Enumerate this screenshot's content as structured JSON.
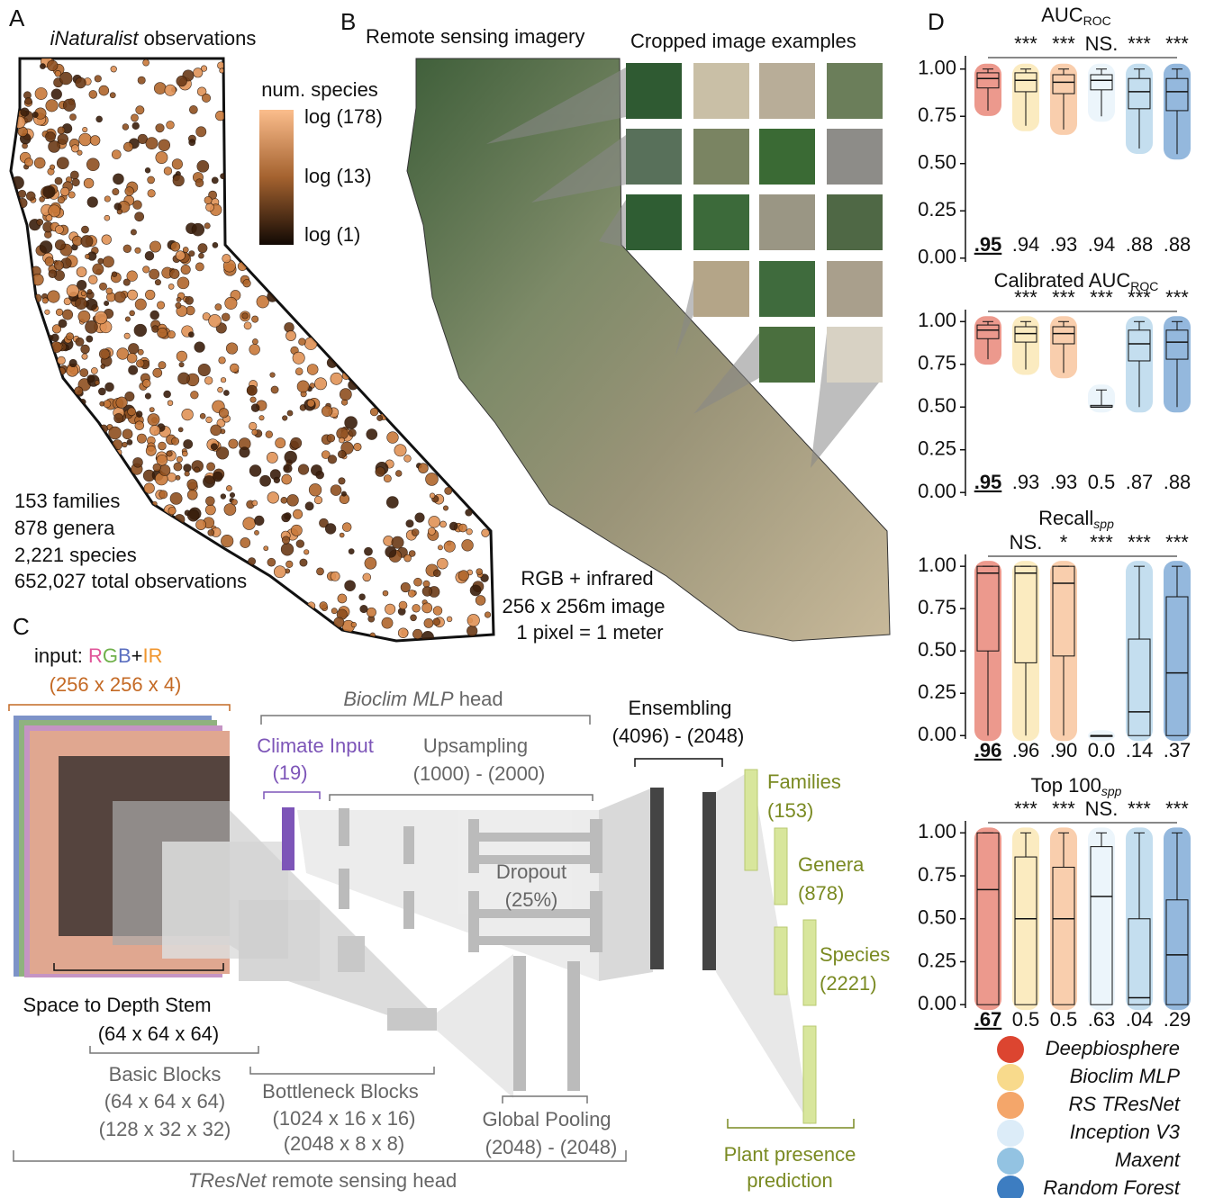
{
  "panel_a": {
    "label": "A",
    "title_italic": "iNaturalist",
    "title_rest": " observations",
    "colorbar_title": "num. species",
    "colorbar_ticks": [
      "log (178)",
      "log (13)",
      "log (1)"
    ],
    "stats": [
      "153  families",
      "878  genera",
      "2,221 species",
      "652,027 total observations"
    ]
  },
  "panel_b": {
    "label": "B",
    "title": "Remote sensing imagery",
    "crop_title": "Cropped image examples",
    "notes": [
      "RGB + infrared",
      "256 x 256m image",
      "1 pixel = 1 meter"
    ]
  },
  "panel_c": {
    "label": "C",
    "input": "input: ",
    "r": "R",
    "g": "G",
    "b": "B",
    "plus": "+",
    "ir": "IR",
    "input_dims": "(256 x 256 x 4)",
    "mlp_italic": "Bioclim MLP",
    "mlp_rest": " head",
    "climate": "Climate Input",
    "climate_dims": "(19)",
    "upsampling": "Upsampling",
    "upsampling_dims": "(1000) - (2000)",
    "dropout": "Dropout",
    "dropout_pct": "(25%)",
    "ensembling": "Ensembling",
    "ensembling_dims": "(4096) - (2048)",
    "families": "Families",
    "families_n": "(153)",
    "genera": "Genera",
    "genera_n": "(878)",
    "species": "Species",
    "species_n": "(2221)",
    "stem": "Space to Depth Stem",
    "stem_dims": "(64 x 64 x 64)",
    "basic": "Basic Blocks",
    "basic_dims": [
      "(64 x 64 x 64)",
      "(128 x 32 x 32)"
    ],
    "bottleneck": "Bottleneck Blocks",
    "bottleneck_dims": [
      "(1024 x 16 x 16)",
      "(2048 x 8 x 8)"
    ],
    "pooling": "Global Pooling",
    "pooling_dims": "(2048) - (2048)",
    "tresnet_italic": "TResNet",
    "tresnet_rest": " remote sensing head",
    "presence": [
      "Plant presence",
      "prediction"
    ]
  },
  "panel_d": {
    "label": "D",
    "legend": [
      {
        "name": "Deepbiosphere",
        "color": "#dc4530"
      },
      {
        "name": "Bioclim MLP",
        "color": "#f8da8c"
      },
      {
        "name": "RS TResNet",
        "color": "#f4a66a"
      },
      {
        "name": "Inception V3",
        "color": "#dcecf8"
      },
      {
        "name": "Maxent",
        "color": "#93c3e2"
      },
      {
        "name": "Random Forest",
        "color": "#3d7dc1"
      }
    ]
  },
  "chart_data": [
    {
      "type": "box",
      "title": "AUC",
      "title_sub": "ROC",
      "ylim": [
        -0.02,
        1.07
      ],
      "yticks": [
        {
          "value": 0,
          "label": "0.00"
        },
        {
          "value": 0.25,
          "label": "0.25"
        },
        {
          "value": 0.5,
          "label": "0.50"
        },
        {
          "value": 0.75,
          "label": "0.75"
        },
        {
          "value": 1,
          "label": "1.00"
        }
      ],
      "series": [
        {
          "stats": [
            0.78,
            0.9,
            0.95,
            0.98,
            1
          ],
          "value_label": ".95"
        },
        {
          "stats": [
            0.7,
            0.88,
            0.94,
            0.98,
            1
          ],
          "value_label": ".94",
          "significance": "***"
        },
        {
          "stats": [
            0.68,
            0.87,
            0.93,
            0.97,
            1
          ],
          "value_label": ".93",
          "significance": "***"
        },
        {
          "stats": [
            0.75,
            0.89,
            0.94,
            0.97,
            1
          ],
          "value_label": ".94",
          "significance": "NS."
        },
        {
          "stats": [
            0.58,
            0.79,
            0.88,
            0.95,
            1
          ],
          "value_label": ".88",
          "significance": "***"
        },
        {
          "stats": [
            0.55,
            0.78,
            0.88,
            0.95,
            1
          ],
          "value_label": ".88",
          "significance": "***"
        }
      ]
    },
    {
      "type": "box",
      "title": "Calibrated AUC",
      "title_sub": "ROC",
      "ylim": [
        -0.02,
        1.07
      ],
      "yticks": [
        {
          "value": 0,
          "label": "0.00"
        },
        {
          "value": 0.25,
          "label": "0.25"
        },
        {
          "value": 0.5,
          "label": "0.50"
        },
        {
          "value": 0.75,
          "label": "0.75"
        },
        {
          "value": 1,
          "label": "1.00"
        }
      ],
      "series": [
        {
          "stats": [
            0.78,
            0.9,
            0.95,
            0.98,
            1
          ],
          "value_label": ".95"
        },
        {
          "stats": [
            0.72,
            0.88,
            0.93,
            0.97,
            1
          ],
          "value_label": ".93",
          "significance": "***"
        },
        {
          "stats": [
            0.7,
            0.87,
            0.93,
            0.97,
            1
          ],
          "value_label": ".93",
          "significance": "***"
        },
        {
          "stats": [
            0.5,
            0.5,
            0.5,
            0.51,
            0.6
          ],
          "value_label": "0.5",
          "significance": "***"
        },
        {
          "stats": [
            0.5,
            0.77,
            0.87,
            0.95,
            1
          ],
          "value_label": ".87",
          "significance": "***"
        },
        {
          "stats": [
            0.5,
            0.78,
            0.88,
            0.95,
            1
          ],
          "value_label": ".88",
          "significance": "***"
        }
      ]
    },
    {
      "type": "box",
      "title": "Recall",
      "title_sub": "spp",
      "ylim": [
        -0.02,
        1.07
      ],
      "yticks": [
        {
          "value": 0,
          "label": "0.00"
        },
        {
          "value": 0.25,
          "label": "0.25"
        },
        {
          "value": 0.5,
          "label": "0.50"
        },
        {
          "value": 0.75,
          "label": "0.75"
        },
        {
          "value": 1,
          "label": "1.00"
        }
      ],
      "series": [
        {
          "stats": [
            0,
            0.5,
            0.96,
            1,
            1
          ],
          "value_label": ".96"
        },
        {
          "stats": [
            0,
            0.43,
            0.96,
            1,
            1
          ],
          "value_label": ".96",
          "significance": "NS."
        },
        {
          "stats": [
            0,
            0.47,
            0.9,
            1,
            1
          ],
          "value_label": ".90",
          "significance": "*"
        },
        {
          "stats": [
            0,
            0,
            0,
            0,
            0
          ],
          "value_label": "0.0",
          "significance": "***"
        },
        {
          "stats": [
            0,
            0,
            0.14,
            0.57,
            1
          ],
          "value_label": ".14",
          "significance": "***"
        },
        {
          "stats": [
            0,
            0,
            0.37,
            0.82,
            1
          ],
          "value_label": ".37",
          "significance": "***"
        }
      ]
    },
    {
      "type": "box",
      "title": "Top 100",
      "title_sub": "spp",
      "ylim": [
        -0.02,
        1.07
      ],
      "yticks": [
        {
          "value": 0,
          "label": "0.00"
        },
        {
          "value": 0.25,
          "label": "0.25"
        },
        {
          "value": 0.5,
          "label": "0.50"
        },
        {
          "value": 0.75,
          "label": "0.75"
        },
        {
          "value": 1,
          "label": "1.00"
        }
      ],
      "series": [
        {
          "stats": [
            0,
            0,
            0.67,
            1,
            1
          ],
          "value_label": ".67"
        },
        {
          "stats": [
            0,
            0,
            0.5,
            0.86,
            1
          ],
          "value_label": "0.5",
          "significance": "***"
        },
        {
          "stats": [
            0,
            0,
            0.5,
            0.8,
            1
          ],
          "value_label": "0.5",
          "significance": "***"
        },
        {
          "stats": [
            0,
            0,
            0.63,
            0.92,
            1
          ],
          "value_label": ".63",
          "significance": "NS."
        },
        {
          "stats": [
            0,
            0,
            0.04,
            0.5,
            1
          ],
          "value_label": ".04",
          "significance": "***"
        },
        {
          "stats": [
            0,
            0,
            0.29,
            0.61,
            1
          ],
          "value_label": ".29",
          "significance": "***"
        }
      ]
    }
  ]
}
